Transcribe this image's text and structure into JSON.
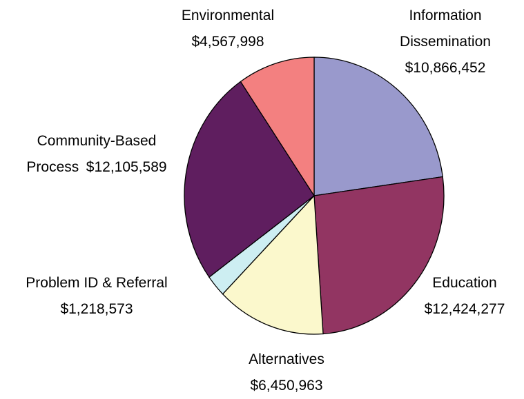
{
  "chart_data": {
    "type": "pie",
    "categories": [
      "Information Dissemination",
      "Education",
      "Alternatives",
      "Problem ID & Referral",
      "Community-Based Process",
      "Environmental"
    ],
    "values": [
      10866452,
      12424277,
      6450963,
      1218573,
      12105589,
      4567998
    ],
    "value_labels": [
      "$10,866,452",
      "$12,424,277",
      "$6,450,963",
      "$1,218,573",
      "$12,105,589",
      "$4,567,998"
    ],
    "colors": [
      "#9999cc",
      "#923562",
      "#fbf8cc",
      "#cdeef2",
      "#5f1e5f",
      "#f38080"
    ]
  }
}
